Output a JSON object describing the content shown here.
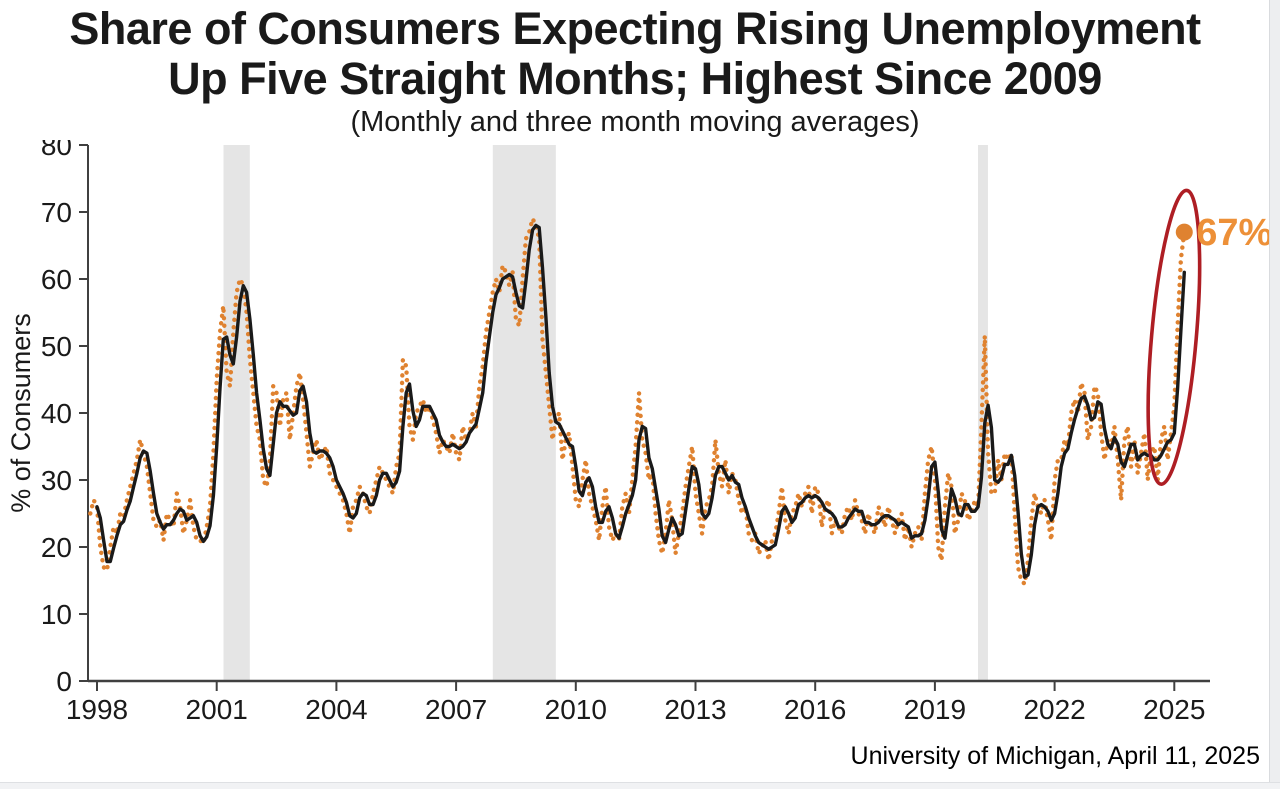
{
  "page": {
    "title_line1": "Share of Consumers Expecting Rising Unemployment",
    "title_line2": "Up Five Straight Months; Highest Since 2009",
    "subtitle": "(Monthly and three month moving averages)",
    "source": "University of Michigan, April 11, 2025"
  },
  "chart_data": {
    "type": "line",
    "title": "Share of Consumers Expecting Rising Unemployment Up Five Straight Months; Highest Since 2009",
    "subtitle": "(Monthly and three month moving averages)",
    "xlabel": "",
    "ylabel": "% of Consumers",
    "ylim": [
      0,
      80
    ],
    "ytick_step": 10,
    "xticks": [
      1998,
      2001,
      2004,
      2007,
      2010,
      2013,
      2016,
      2019,
      2022,
      2025
    ],
    "xlim": [
      1997.78,
      2026.0
    ],
    "grid": false,
    "legend": "none (described in subtitle)",
    "axis_color": "#404040",
    "series": [
      {
        "name": "Monthly share expecting rising unemployment (%)",
        "style": "dotted",
        "color": "#DF8230",
        "start_year": 1997.8333,
        "interval_years": 0.083333,
        "values": [
          25,
          27,
          26,
          20,
          17,
          16.5,
          20,
          23,
          22,
          25,
          24.5,
          27,
          29,
          31,
          33,
          36,
          34,
          32,
          28,
          24,
          23,
          24,
          21,
          25,
          24,
          23,
          28,
          26,
          22,
          24,
          27,
          23,
          21,
          21,
          20.5,
          23,
          26,
          34,
          45,
          52,
          56,
          46,
          44,
          52,
          58,
          60,
          59,
          55,
          48,
          43,
          38,
          36,
          30,
          29,
          33,
          44,
          43,
          38,
          42,
          43,
          36,
          40,
          44,
          46,
          42,
          37,
          32,
          34,
          36,
          33,
          34,
          35,
          31,
          30,
          29,
          28,
          27,
          25,
          22,
          26,
          27,
          29,
          28,
          26,
          25,
          28,
          30,
          32,
          31,
          30,
          29,
          28,
          32,
          34,
          48,
          47,
          38,
          36,
          40,
          41,
          42,
          40,
          41,
          39,
          37,
          34,
          36,
          35,
          34,
          37,
          34,
          33,
          38,
          36,
          37,
          40,
          38,
          44,
          47,
          52,
          55,
          58,
          60,
          58,
          62,
          61,
          59,
          61,
          54,
          53,
          60,
          66,
          67,
          69,
          68,
          66,
          51,
          46,
          41,
          36,
          39,
          40,
          33,
          36,
          37,
          32,
          27,
          26,
          30,
          33,
          28,
          26,
          24,
          21,
          26,
          29,
          23,
          21,
          22,
          21,
          26,
          28,
          25,
          30,
          35,
          43,
          36,
          34,
          30,
          31,
          25,
          21,
          19,
          22,
          27,
          24,
          19,
          22,
          25,
          29,
          32,
          35,
          28,
          25,
          22,
          26,
          27,
          29,
          36,
          31,
          29,
          33,
          28,
          31,
          30,
          27,
          25,
          26,
          22,
          21,
          22,
          19,
          20,
          21,
          18,
          21,
          22,
          25,
          29,
          24,
          22,
          25,
          26,
          28,
          26,
          28,
          29,
          25,
          29,
          28,
          23,
          26,
          27,
          22,
          24,
          23,
          22,
          25,
          26,
          24,
          27,
          25,
          24,
          22,
          25,
          23,
          22,
          26,
          25,
          23,
          26,
          24,
          22,
          24,
          25,
          21,
          23,
          20,
          22,
          23,
          21,
          28,
          33,
          35,
          30,
          20,
          18,
          26,
          31,
          29,
          22,
          24,
          28,
          27,
          24,
          25,
          27,
          26,
          38,
          51.5,
          34,
          28,
          28,
          33,
          30,
          34,
          33,
          34,
          25,
          17,
          15,
          14.5,
          18,
          24,
          28,
          26,
          25,
          27,
          24,
          21,
          30,
          33,
          33,
          36,
          35,
          40,
          42,
          40,
          44.5,
          43,
          36,
          38,
          44,
          43,
          37,
          33,
          36,
          35,
          38,
          33,
          27,
          36,
          38,
          32,
          36,
          31,
          34,
          37,
          30,
          34,
          35,
          30,
          36,
          38,
          33,
          37,
          41,
          53,
          63,
          67
        ]
      },
      {
        "name": "Three month moving average",
        "style": "solid",
        "color": "#1A1A1A",
        "derived": "3-month moving average of the monthly series",
        "latest_value": 61
      }
    ],
    "recession_bands": [
      {
        "start": 2001.17,
        "end": 2001.83
      },
      {
        "start": 2007.92,
        "end": 2009.5
      },
      {
        "start": 2020.08,
        "end": 2020.33
      }
    ],
    "recession_color": "#E5E5E5",
    "annotation": {
      "label": "67%",
      "x": 2025.25,
      "y": 67,
      "dot_color": "#DF8230",
      "label_color": "#ED9038"
    },
    "highlight_ellipse": {
      "x_center": 2024.99,
      "y_center": 51.3,
      "x_radius_years": 0.56,
      "y_radius": 22,
      "rotation_deg": 5,
      "color": "#AE1E24"
    }
  }
}
